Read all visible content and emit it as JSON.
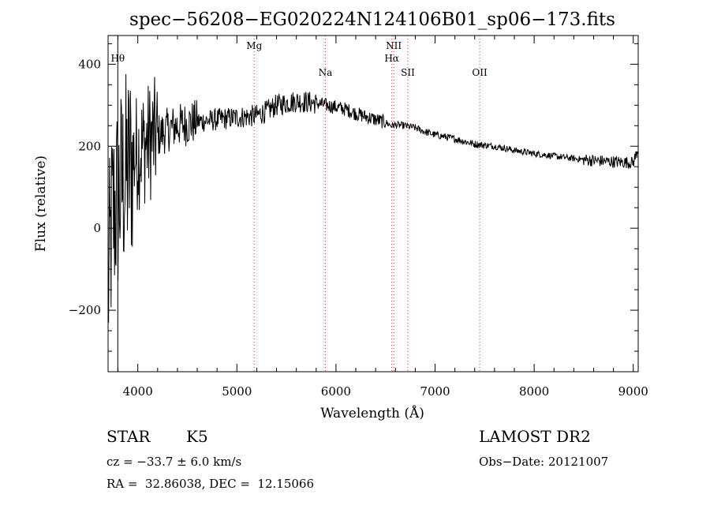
{
  "chart_data": {
    "type": "line",
    "title": "spec−56208−EG020224N124106B01_sp06−173.fits",
    "xlabel": "Wavelength (Å)",
    "ylabel": "Flux (relative)",
    "xlim": [
      3700,
      9050
    ],
    "ylim": [
      -350,
      470
    ],
    "x_ticks": [
      4000,
      5000,
      6000,
      7000,
      8000,
      9000
    ],
    "y_ticks": [
      -200,
      0,
      200,
      400
    ],
    "y_tick_labels": [
      "−200",
      "0",
      "200",
      "400"
    ],
    "grid": false,
    "series": [
      {
        "wavelength": [
          3700,
          3740,
          3780,
          3820,
          3860,
          3900,
          3950,
          4000,
          4100,
          4200,
          4300,
          4400,
          4500,
          4600,
          4700,
          4800,
          4900,
          5000,
          5100,
          5200,
          5300,
          5400,
          5500,
          5600,
          5700,
          5800,
          5900,
          6000,
          6100,
          6200,
          6300,
          6400,
          6500,
          6560,
          6600,
          6700,
          6800,
          6900,
          7000,
          7200,
          7400,
          7600,
          7800,
          8000,
          8200,
          8400,
          8600,
          8800,
          9000,
          9050
        ],
        "flux": [
          -150,
          20,
          60,
          90,
          120,
          140,
          170,
          190,
          210,
          225,
          240,
          250,
          255,
          260,
          262,
          265,
          268,
          270,
          272,
          275,
          285,
          300,
          305,
          310,
          308,
          305,
          300,
          295,
          290,
          280,
          272,
          265,
          258,
          250,
          252,
          250,
          245,
          235,
          228,
          218,
          205,
          200,
          190,
          182,
          176,
          170,
          165,
          162,
          160,
          195
        ]
      }
    ],
    "line_markers": [
      {
        "label": "Hθ",
        "x": 3798
      },
      {
        "label": "Mg",
        "x": 5175
      },
      {
        "label": "Na",
        "x": 5893
      },
      {
        "label": "NII",
        "x": 6583
      },
      {
        "label": "Hα",
        "x": 6563
      },
      {
        "label": "SII",
        "x": 6725
      },
      {
        "label": "OII",
        "x": 7450
      }
    ]
  },
  "info": {
    "object_class": "STAR",
    "subclass": "K5",
    "survey": "LAMOST DR2",
    "cz": "cz = −33.7 ± 6.0 km/s",
    "obs_date": "Obs−Date: 20121007",
    "radec": "RA =  32.86038, DEC =  12.15066"
  }
}
